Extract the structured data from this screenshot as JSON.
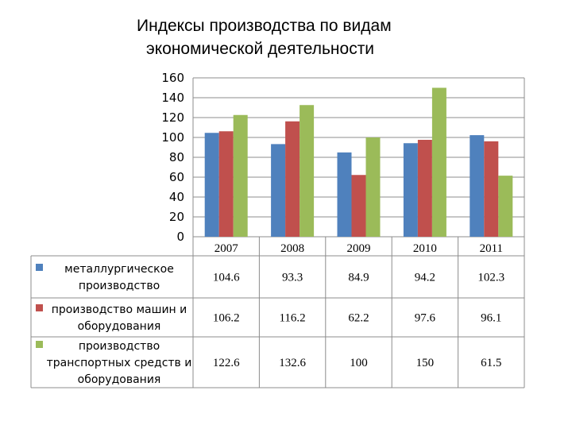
{
  "title_line1": "Индексы производства по видам",
  "title_line2": "экономической деятельности",
  "chart_data": {
    "type": "bar",
    "title": "Индексы производства по видам экономической деятельности",
    "categories": [
      "2007",
      "2008",
      "2009",
      "2010",
      "2011"
    ],
    "ylim": [
      0,
      160
    ],
    "yticks": [
      "0",
      "20",
      "40",
      "60",
      "80",
      "100",
      "120",
      "140",
      "160"
    ],
    "grid": true,
    "legend_position": "bottom-left (data table)",
    "series": [
      {
        "name": "металлургическое производство",
        "legend_lines": [
          "металлургическое",
          "производство"
        ],
        "values": [
          104.6,
          93.3,
          84.9,
          94.2,
          102.3
        ],
        "labels": [
          "104.6",
          "93.3",
          "84.9",
          "94.2",
          "102.3"
        ],
        "color": "#4F81BD"
      },
      {
        "name": "производство машин и оборудования",
        "legend_lines": [
          "производство машин и",
          "оборудования"
        ],
        "values": [
          106.2,
          116.2,
          62.2,
          97.6,
          96.1
        ],
        "labels": [
          "106.2",
          "116.2",
          "62.2",
          "97.6",
          "96.1"
        ],
        "color": "#C0504D"
      },
      {
        "name": "производство транспортных средств и оборудования",
        "legend_lines": [
          "производство",
          "транспортных средств и",
          "оборудования"
        ],
        "values": [
          122.6,
          132.6,
          100,
          150,
          61.5
        ],
        "labels": [
          "122.6",
          "132.6",
          "100",
          "150",
          "61.5"
        ],
        "color": "#9BBB59"
      }
    ]
  }
}
